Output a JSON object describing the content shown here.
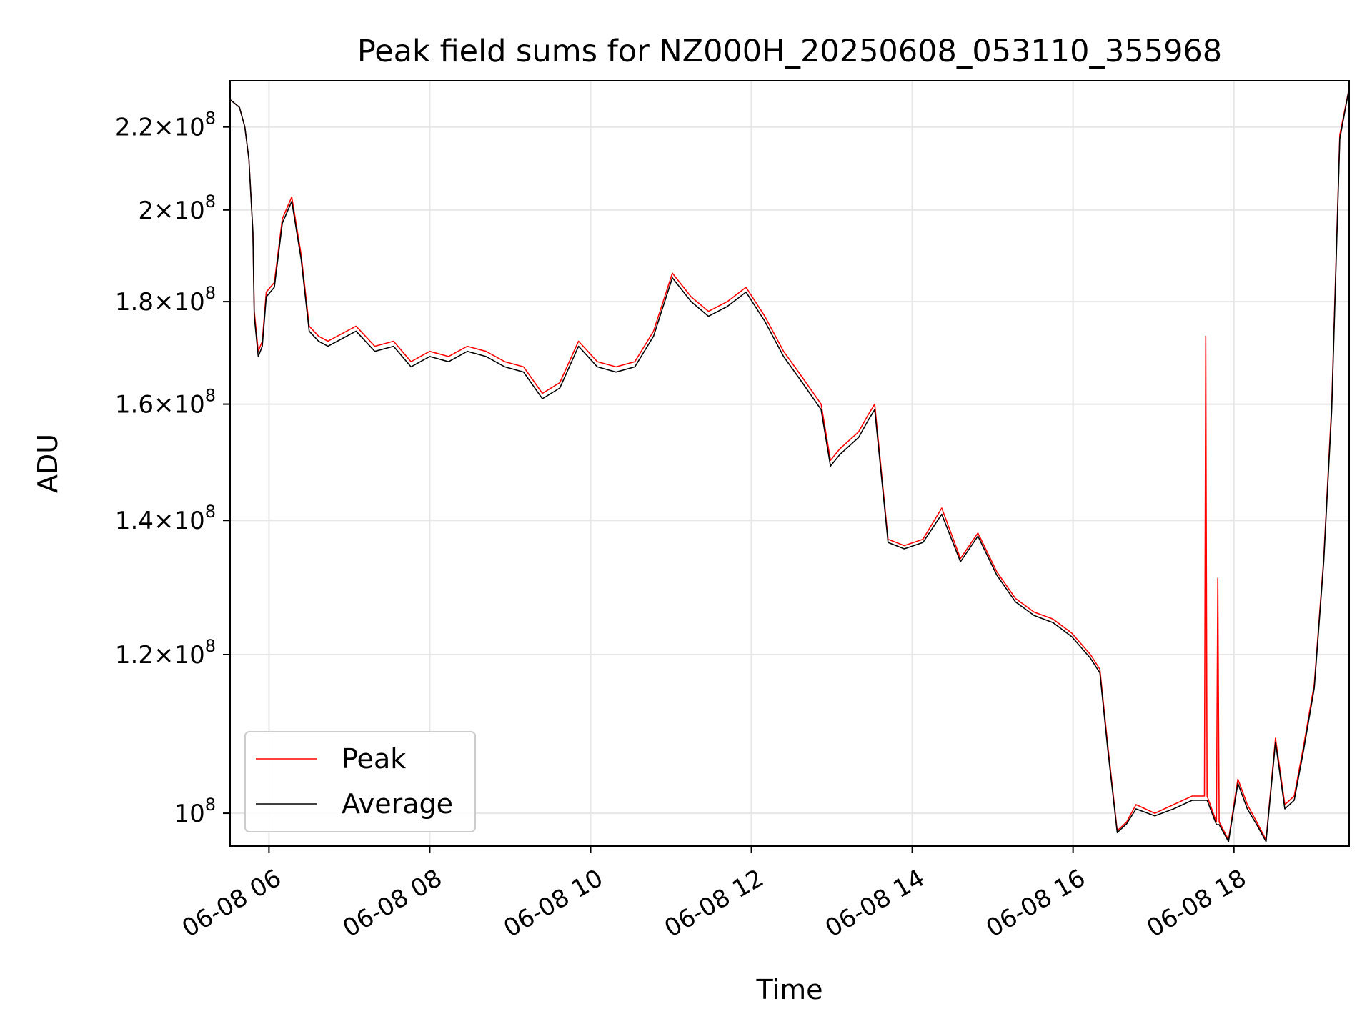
{
  "chart_data": {
    "type": "line",
    "title": "Peak field sums for NZ000H_20250608_053110_355968",
    "xlabel": "Time",
    "ylabel": "ADU",
    "y_scale": "log",
    "grid": true,
    "legend_position": "lower-left",
    "xlim": [
      "2025-06-08 05:31",
      "2025-06-08 19:26"
    ],
    "ylim": [
      96300000,
      232000000
    ],
    "x_ticks": [
      "06-08 06",
      "06-08 08",
      "06-08 10",
      "06-08 12",
      "06-08 14",
      "06-08 16",
      "06-08 18"
    ],
    "x_tick_hours": [
      6,
      8,
      10,
      12,
      14,
      16,
      18
    ],
    "y_ticks": [
      {
        "value": 100000000,
        "mantissa": "",
        "exponent": "8"
      },
      {
        "value": 120000000,
        "mantissa": "1.2",
        "exponent": "8"
      },
      {
        "value": 140000000,
        "mantissa": "1.4",
        "exponent": "8"
      },
      {
        "value": 160000000,
        "mantissa": "1.6",
        "exponent": "8"
      },
      {
        "value": 180000000,
        "mantissa": "1.8",
        "exponent": "8"
      },
      {
        "value": 200000000,
        "mantissa": "2",
        "exponent": "8"
      },
      {
        "value": 220000000,
        "mantissa": "2.2",
        "exponent": "8"
      }
    ],
    "series": [
      {
        "name": "Peak",
        "color": "#ff0000",
        "x": [
          "05:31",
          "05:38",
          "05:42",
          "05:45",
          "05:48",
          "05:49",
          "05:52",
          "05:55",
          "05:58",
          "06:04",
          "06:10",
          "06:17",
          "06:24",
          "06:30",
          "06:37",
          "06:44",
          "06:51",
          "07:05",
          "07:19",
          "07:33",
          "07:46",
          "08:00",
          "08:14",
          "08:28",
          "08:42",
          "08:56",
          "09:10",
          "09:24",
          "09:37",
          "09:51",
          "10:05",
          "10:19",
          "10:33",
          "10:47",
          "11:01",
          "11:15",
          "11:28",
          "11:42",
          "11:56",
          "12:10",
          "12:24",
          "12:38",
          "12:52",
          "12:59",
          "13:06",
          "13:20",
          "13:27",
          "13:32",
          "13:42",
          "13:54",
          "14:08",
          "14:22",
          "14:36",
          "14:49",
          "15:03",
          "15:17",
          "15:31",
          "15:45",
          "15:59",
          "16:13",
          "16:20",
          "16:26",
          "16:33",
          "16:40",
          "16:47",
          "17:01",
          "17:15",
          "17:29",
          "17:38",
          "17:39",
          "17:40",
          "17:47",
          "17:48",
          "17:49",
          "17:56",
          "18:03",
          "18:10",
          "18:17",
          "18:24",
          "18:31",
          "18:38",
          "18:45",
          "18:52",
          "19:00",
          "19:07",
          "19:13",
          "19:19",
          "19:26"
        ],
        "values": [
          227000000,
          225000000,
          220000000,
          212000000,
          195000000,
          178000000,
          170000000,
          172000000,
          182000000,
          184000000,
          198000000,
          203000000,
          190000000,
          175000000,
          173000000,
          172000000,
          173000000,
          175000000,
          171000000,
          172000000,
          168000000,
          170000000,
          169000000,
          171000000,
          170000000,
          168000000,
          167000000,
          162000000,
          164000000,
          172000000,
          168000000,
          167000000,
          168000000,
          174000000,
          186000000,
          181000000,
          178000000,
          180000000,
          183000000,
          177000000,
          170000000,
          165000000,
          160000000,
          150000000,
          152000000,
          155000000,
          158000000,
          160000000,
          137000000,
          136000000,
          137000000,
          142000000,
          134000000,
          138000000,
          132000000,
          128000000,
          126000000,
          125000000,
          123000000,
          120000000,
          118000000,
          108000000,
          98000000,
          99000000,
          101000000,
          100000000,
          101000000,
          102000000,
          102000000,
          173000000,
          102000000,
          99000000,
          131000000,
          99000000,
          97000000,
          104000000,
          101000000,
          99000000,
          97000000,
          109000000,
          101000000,
          102000000,
          108000000,
          116000000,
          134000000,
          160000000,
          218000000,
          230000000
        ]
      },
      {
        "name": "Average",
        "color": "#000000",
        "x": [
          "05:31",
          "05:38",
          "05:42",
          "05:45",
          "05:48",
          "05:49",
          "05:52",
          "05:55",
          "05:58",
          "06:04",
          "06:10",
          "06:17",
          "06:24",
          "06:30",
          "06:37",
          "06:44",
          "06:51",
          "07:05",
          "07:19",
          "07:33",
          "07:46",
          "08:00",
          "08:14",
          "08:28",
          "08:42",
          "08:56",
          "09:10",
          "09:24",
          "09:37",
          "09:51",
          "10:05",
          "10:19",
          "10:33",
          "10:47",
          "11:01",
          "11:15",
          "11:28",
          "11:42",
          "11:56",
          "12:10",
          "12:24",
          "12:38",
          "12:52",
          "12:59",
          "13:06",
          "13:20",
          "13:27",
          "13:32",
          "13:42",
          "13:54",
          "14:08",
          "14:22",
          "14:36",
          "14:49",
          "15:03",
          "15:17",
          "15:31",
          "15:45",
          "15:59",
          "16:13",
          "16:20",
          "16:26",
          "16:33",
          "16:40",
          "16:47",
          "17:01",
          "17:15",
          "17:29",
          "17:38",
          "17:39",
          "17:40",
          "17:47",
          "17:48",
          "17:49",
          "17:56",
          "18:03",
          "18:10",
          "18:17",
          "18:24",
          "18:31",
          "18:38",
          "18:45",
          "18:52",
          "19:00",
          "19:07",
          "19:13",
          "19:19",
          "19:26"
        ],
        "values": [
          227000000,
          225000000,
          220000000,
          212000000,
          195000000,
          177000000,
          169000000,
          171000000,
          181000000,
          183000000,
          197000000,
          202000000,
          189000000,
          174000000,
          172000000,
          171000000,
          172000000,
          174000000,
          170000000,
          171000000,
          167000000,
          169000000,
          168000000,
          170000000,
          169000000,
          167000000,
          166000000,
          161000000,
          163000000,
          171000000,
          167000000,
          166000000,
          167000000,
          173000000,
          185000000,
          180000000,
          177000000,
          179000000,
          182000000,
          176000000,
          169000000,
          164000000,
          159000000,
          149000000,
          151000000,
          154000000,
          157000000,
          159000000,
          136500000,
          135500000,
          136500000,
          141000000,
          133500000,
          137500000,
          131500000,
          127500000,
          125500000,
          124500000,
          122500000,
          119500000,
          117500000,
          107500000,
          97800000,
          98800000,
          100500000,
          99700000,
          100500000,
          101500000,
          101500000,
          101500000,
          101500000,
          98700000,
          98700000,
          98700000,
          96800000,
          103500000,
          100500000,
          98700000,
          96800000,
          108500000,
          100500000,
          101500000,
          107500000,
          115500000,
          133500000,
          159000000,
          217000000,
          230000000
        ]
      }
    ]
  }
}
